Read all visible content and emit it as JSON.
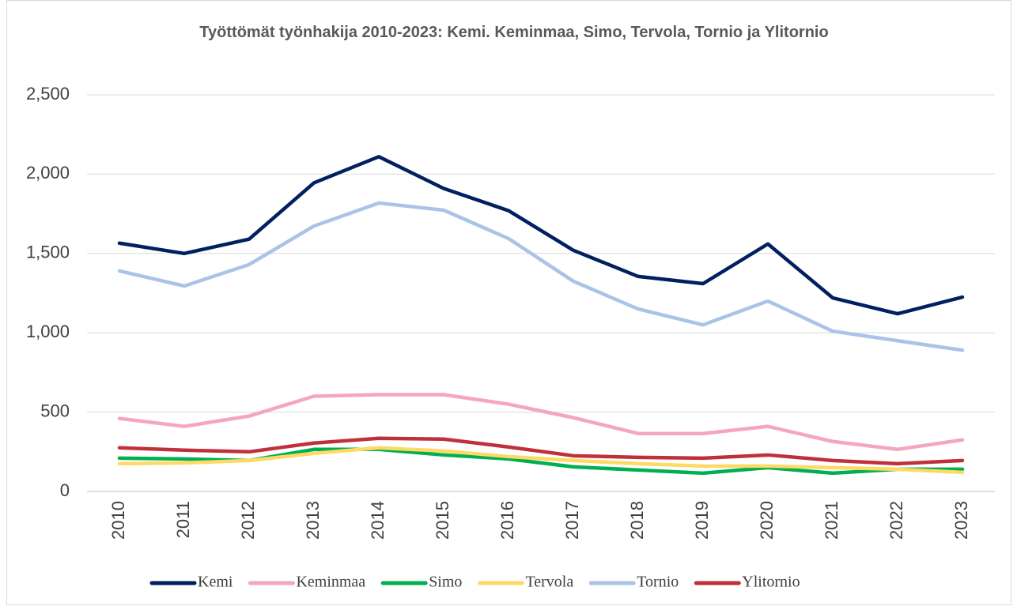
{
  "chart_data": {
    "type": "line",
    "title": "Työttömät työnhakija 2010-2023: Kemi. Keminmaa, Simo, Tervola, Tornio ja Ylitornio",
    "categories": [
      "2010",
      "2011",
      "2012",
      "2013",
      "2014",
      "2015",
      "2016",
      "2017",
      "2018",
      "2019",
      "2020",
      "2021",
      "2022",
      "2023"
    ],
    "series": [
      {
        "name": "Kemi",
        "color": "#002060",
        "values": [
          1565,
          1500,
          1590,
          1945,
          2110,
          1910,
          1770,
          1520,
          1355,
          1310,
          1560,
          1220,
          1120,
          1225
        ]
      },
      {
        "name": "Keminmaa",
        "color": "#f4a6be",
        "values": [
          460,
          410,
          475,
          600,
          610,
          610,
          550,
          465,
          365,
          365,
          410,
          315,
          265,
          325
        ]
      },
      {
        "name": "Simo",
        "color": "#00b050",
        "values": [
          210,
          205,
          195,
          265,
          265,
          230,
          205,
          155,
          135,
          115,
          150,
          115,
          140,
          140
        ]
      },
      {
        "name": "Tervola",
        "color": "#ffd966",
        "values": [
          175,
          180,
          195,
          240,
          275,
          255,
          220,
          195,
          175,
          160,
          160,
          150,
          140,
          120
        ]
      },
      {
        "name": "Tornio",
        "color": "#a9c4e6",
        "values": [
          1390,
          1295,
          1430,
          1673,
          1818,
          1773,
          1594,
          1325,
          1150,
          1050,
          1200,
          1010,
          950,
          890
        ]
      },
      {
        "name": "Ylitornio",
        "color": "#c0303a",
        "values": [
          275,
          260,
          250,
          305,
          335,
          330,
          280,
          225,
          215,
          210,
          230,
          195,
          175,
          195
        ]
      }
    ],
    "ylim": [
      0,
      2500
    ],
    "yticks": [
      0,
      {
        "value": 500,
        "label": "500"
      },
      {
        "value": 1000,
        "label": "1,000"
      },
      {
        "value": 1500,
        "label": "1,500"
      },
      {
        "value": 2000,
        "label": "2,000"
      },
      {
        "value": 2500,
        "label": "2,500"
      }
    ],
    "grid": true,
    "legend": "bottom"
  }
}
